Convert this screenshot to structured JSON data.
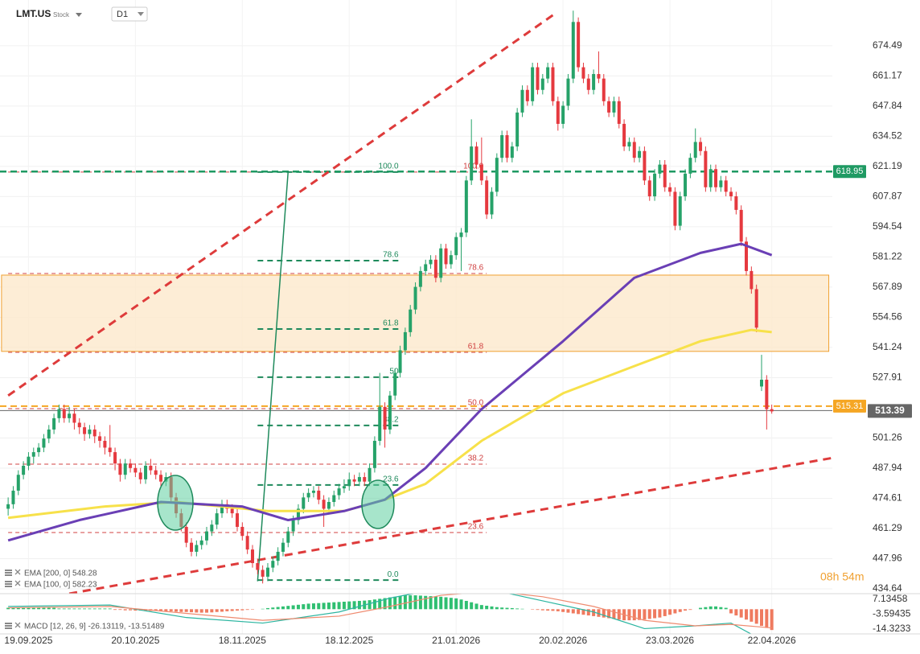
{
  "chart_data": {
    "type": "candlestick",
    "symbol": "LMT.US",
    "instrument_type": "Stock",
    "timeframe": "D1",
    "categories": [
      null,
      null,
      null,
      null,
      "19.09.2025",
      null,
      null,
      null,
      null,
      null,
      null,
      null,
      null,
      null,
      null,
      null,
      null,
      null,
      null,
      null,
      null,
      null,
      null,
      null,
      null,
      "20.10.2025",
      null,
      null,
      null,
      null,
      null,
      null,
      null,
      null,
      null,
      null,
      null,
      null,
      null,
      null,
      null,
      null,
      null,
      null,
      null,
      null,
      "18.11.2025",
      null,
      null,
      null,
      null,
      null,
      null,
      null,
      null,
      null,
      null,
      null,
      null,
      null,
      null,
      null,
      null,
      null,
      null,
      null,
      null,
      "18.12.2025",
      null,
      null,
      null,
      null,
      null,
      null,
      null,
      null,
      null,
      null,
      null,
      null,
      null,
      null,
      null,
      null,
      null,
      null,
      null,
      null,
      "21.01.2026",
      null,
      null,
      null,
      null,
      null,
      null,
      null,
      null,
      null,
      null,
      null,
      null,
      null,
      null,
      null,
      null,
      null,
      null,
      null,
      null,
      "20.02.2026",
      null,
      null,
      null,
      null,
      null,
      null,
      null,
      null,
      null,
      null,
      null,
      null,
      null,
      null,
      null,
      null,
      null,
      null,
      null,
      null,
      "23.03.2026",
      null,
      null,
      null,
      null,
      null,
      null,
      null,
      null,
      null,
      null,
      null,
      null,
      null,
      null,
      null,
      null,
      null,
      null,
      null,
      "22.04.2026"
    ],
    "candles": [
      [
        470,
        475,
        467,
        472
      ],
      [
        472,
        480,
        470,
        478
      ],
      [
        478,
        487,
        476,
        485
      ],
      [
        485,
        491,
        483,
        489
      ],
      [
        489,
        495,
        487,
        493
      ],
      [
        493,
        497,
        490,
        495
      ],
      [
        495,
        499,
        493,
        497
      ],
      [
        497,
        503,
        495,
        501
      ],
      [
        501,
        507,
        499,
        505
      ],
      [
        505,
        512,
        503,
        510
      ],
      [
        510,
        516,
        508,
        514
      ],
      [
        514,
        516,
        508,
        510
      ],
      [
        510,
        515,
        508,
        512
      ],
      [
        512,
        514,
        505,
        508
      ],
      [
        508,
        510,
        503,
        506
      ],
      [
        506,
        508,
        500,
        503
      ],
      [
        503,
        507,
        501,
        505
      ],
      [
        505,
        507,
        499,
        502
      ],
      [
        502,
        504,
        497,
        500
      ],
      [
        500,
        502,
        494,
        497
      ],
      [
        497,
        507,
        493,
        495
      ],
      [
        495,
        497,
        487,
        490
      ],
      [
        490,
        492,
        482,
        485
      ],
      [
        485,
        492,
        483,
        490
      ],
      [
        490,
        492,
        486,
        488
      ],
      [
        488,
        490,
        484,
        486
      ],
      [
        486,
        488,
        481,
        483
      ],
      [
        483,
        491,
        481,
        489
      ],
      [
        489,
        492,
        485,
        487
      ],
      [
        487,
        489,
        483,
        485
      ],
      [
        485,
        487,
        480,
        482
      ],
      [
        482,
        486,
        480,
        484
      ],
      [
        484,
        486,
        473,
        475
      ],
      [
        475,
        477,
        466,
        468
      ],
      [
        468,
        470,
        460,
        462
      ],
      [
        462,
        464,
        453,
        455
      ],
      [
        455,
        457,
        449,
        451
      ],
      [
        451,
        456,
        449,
        454
      ],
      [
        454,
        458,
        452,
        456
      ],
      [
        456,
        462,
        454,
        460
      ],
      [
        460,
        465,
        458,
        463
      ],
      [
        463,
        470,
        461,
        468
      ],
      [
        468,
        474,
        466,
        472
      ],
      [
        472,
        474,
        468,
        470
      ],
      [
        470,
        472,
        466,
        468
      ],
      [
        468,
        470,
        460,
        462
      ],
      [
        462,
        464,
        456,
        458
      ],
      [
        458,
        460,
        450,
        452
      ],
      [
        452,
        454,
        444,
        446
      ],
      [
        446,
        448,
        441,
        443
      ],
      [
        443,
        445,
        437,
        440
      ],
      [
        440,
        446,
        438,
        444
      ],
      [
        444,
        449,
        442,
        447
      ],
      [
        447,
        453,
        445,
        451
      ],
      [
        451,
        457,
        449,
        455
      ],
      [
        455,
        462,
        453,
        460
      ],
      [
        460,
        467,
        458,
        465
      ],
      [
        465,
        472,
        463,
        470
      ],
      [
        470,
        477,
        468,
        475
      ],
      [
        475,
        479,
        473,
        477
      ],
      [
        477,
        480,
        475,
        478
      ],
      [
        478,
        480,
        472,
        474
      ],
      [
        474,
        476,
        462,
        470
      ],
      [
        470,
        475,
        468,
        473
      ],
      [
        473,
        478,
        471,
        476
      ],
      [
        476,
        481,
        474,
        479
      ],
      [
        479,
        483,
        477,
        480
      ],
      [
        480,
        486,
        478,
        483
      ],
      [
        483,
        485,
        480,
        482
      ],
      [
        482,
        486,
        480,
        484
      ],
      [
        484,
        486,
        480,
        482
      ],
      [
        482,
        490,
        480,
        488
      ],
      [
        488,
        502,
        486,
        500
      ],
      [
        500,
        530,
        498,
        515
      ],
      [
        515,
        517,
        497,
        505
      ],
      [
        505,
        522,
        503,
        520
      ],
      [
        520,
        532,
        518,
        530
      ],
      [
        530,
        542,
        528,
        540
      ],
      [
        540,
        550,
        538,
        548
      ],
      [
        548,
        560,
        546,
        558
      ],
      [
        558,
        570,
        556,
        568
      ],
      [
        568,
        577,
        566,
        575
      ],
      [
        575,
        580,
        573,
        578
      ],
      [
        578,
        582,
        576,
        580
      ],
      [
        580,
        582,
        570,
        572
      ],
      [
        572,
        587,
        570,
        585
      ],
      [
        585,
        587,
        576,
        578
      ],
      [
        578,
        584,
        576,
        582
      ],
      [
        582,
        592,
        580,
        590
      ],
      [
        590,
        594,
        575,
        592
      ],
      [
        592,
        617,
        590,
        615
      ],
      [
        615,
        642,
        613,
        630
      ],
      [
        630,
        632,
        620,
        622
      ],
      [
        622,
        634,
        613,
        615
      ],
      [
        615,
        617,
        598,
        600
      ],
      [
        600,
        612,
        598,
        610
      ],
      [
        610,
        627,
        608,
        625
      ],
      [
        625,
        637,
        623,
        635
      ],
      [
        635,
        637,
        623,
        625
      ],
      [
        625,
        632,
        623,
        630
      ],
      [
        630,
        647,
        628,
        645
      ],
      [
        645,
        657,
        643,
        655
      ],
      [
        655,
        657,
        648,
        650
      ],
      [
        650,
        667,
        648,
        665
      ],
      [
        665,
        667,
        653,
        655
      ],
      [
        655,
        662,
        653,
        660
      ],
      [
        660,
        667,
        658,
        665
      ],
      [
        665,
        667,
        648,
        650
      ],
      [
        650,
        652,
        637,
        640
      ],
      [
        640,
        650,
        638,
        648
      ],
      [
        648,
        662,
        646,
        660
      ],
      [
        660,
        690,
        658,
        685
      ],
      [
        685,
        687,
        663,
        665
      ],
      [
        665,
        667,
        658,
        660
      ],
      [
        660,
        662,
        653,
        655
      ],
      [
        655,
        664,
        653,
        662
      ],
      [
        662,
        672,
        658,
        660
      ],
      [
        660,
        662,
        648,
        650
      ],
      [
        650,
        652,
        643,
        645
      ],
      [
        645,
        652,
        643,
        650
      ],
      [
        650,
        652,
        638,
        640
      ],
      [
        640,
        642,
        628,
        630
      ],
      [
        630,
        634,
        628,
        632
      ],
      [
        632,
        634,
        623,
        625
      ],
      [
        625,
        630,
        623,
        628
      ],
      [
        628,
        630,
        613,
        615
      ],
      [
        615,
        617,
        606,
        608
      ],
      [
        608,
        620,
        606,
        618
      ],
      [
        618,
        624,
        616,
        622
      ],
      [
        622,
        624,
        610,
        612
      ],
      [
        612,
        614,
        608,
        610
      ],
      [
        610,
        612,
        593,
        595
      ],
      [
        595,
        610,
        593,
        608
      ],
      [
        608,
        620,
        606,
        618
      ],
      [
        618,
        627,
        616,
        625
      ],
      [
        625,
        638,
        623,
        632
      ],
      [
        632,
        634,
        626,
        628
      ],
      [
        628,
        630,
        610,
        612
      ],
      [
        612,
        622,
        610,
        620
      ],
      [
        620,
        622,
        610,
        612
      ],
      [
        612,
        617,
        610,
        615
      ],
      [
        615,
        617,
        608,
        610
      ],
      [
        610,
        612,
        606,
        608
      ],
      [
        608,
        610,
        600,
        602
      ],
      [
        602,
        604,
        586,
        588
      ],
      [
        588,
        590,
        573,
        575
      ],
      [
        575,
        577,
        565,
        567
      ],
      [
        567,
        569,
        548,
        550
      ],
      [
        524,
        538,
        522,
        527
      ],
      [
        527,
        529,
        505,
        514
      ],
      [
        514,
        516,
        512,
        513
      ]
    ],
    "up_color": "#26a269",
    "down_color": "#e5393f",
    "xlim": [
      -1.6,
      161.9
    ],
    "ylim": [
      432.5,
      694.7
    ],
    "yticks": [
      674.49,
      661.17,
      647.84,
      634.52,
      621.19,
      607.87,
      594.54,
      581.22,
      567.89,
      554.56,
      541.24,
      527.91,
      501.26,
      487.94,
      474.61,
      461.29,
      447.96,
      434.64
    ],
    "grid": true,
    "overlays": [
      {
        "legend": "EMA [200, 0] 548.28",
        "color": "#f7e14a",
        "x": [
          0,
          19,
          33,
          51,
          66,
          74,
          82,
          93,
          109,
          123,
          136,
          146,
          150
        ],
        "values": [
          466,
          471,
          473,
          469,
          469,
          474,
          481,
          500,
          521,
          533,
          544,
          549,
          548
        ]
      },
      {
        "legend": "EMA [100, 0] 582.23",
        "color": "#6a3fb5",
        "x": [
          0,
          14,
          30,
          46,
          55,
          66,
          74,
          82,
          93,
          109,
          123,
          136,
          144,
          150
        ],
        "values": [
          456,
          465,
          473,
          471,
          465,
          469,
          474,
          488,
          514,
          544,
          572,
          583,
          587,
          582
        ]
      }
    ],
    "trend_lines": [
      {
        "color": "#de3b3b",
        "style": "dashed",
        "x": [
          0,
          107
        ],
        "values": [
          520,
          688
        ]
      },
      {
        "color": "#de3b3b",
        "style": "dashed",
        "x": [
          12,
          162
        ],
        "values": [
          432.5,
          492.5
        ]
      },
      {
        "color": "#1f8a5c",
        "style": "solid",
        "x": [
          49,
          55
        ],
        "values": [
          438,
          619
        ]
      }
    ],
    "zone": {
      "range": [
        539.5,
        573.2
      ],
      "x": [
        -1.3,
        161.2
      ],
      "color": "#fde9cc",
      "border": "#f0a030"
    },
    "levels": [
      {
        "value": 618.95,
        "color": "#1f9a63",
        "style": "dashed"
      },
      {
        "value": 515.31,
        "color": "#f5a623",
        "style": "dashed"
      }
    ],
    "last_price": {
      "value": 513.39,
      "color": "#666666"
    },
    "fib_green": {
      "color": "#1f8a5c",
      "x": [
        49,
        77
      ],
      "levels": [
        {
          "label": "100.0",
          "value": 618.7
        },
        {
          "label": "78.6",
          "value": 579.6
        },
        {
          "label": "61.8",
          "value": 549.4
        },
        {
          "label": "50",
          "value": 528.1
        },
        {
          "label": "38.2",
          "value": 506.8
        },
        {
          "label": "23.6",
          "value": 480.5
        },
        {
          "label": "0.0",
          "value": 438.5
        }
      ]
    },
    "fib_red": {
      "color": "#d04040",
      "x": [
        0,
        94
      ],
      "levels": [
        {
          "label": "100.0",
          "value": 618.7
        },
        {
          "label": "78.6",
          "value": 573.9
        },
        {
          "label": "61.8",
          "value": 539.1
        },
        {
          "label": "50.0",
          "value": 514.2
        },
        {
          "label": "38.2",
          "value": 489.7
        },
        {
          "label": "23.6",
          "value": 459.5
        }
      ]
    },
    "timer": "08h 54m",
    "macd": {
      "legend": "MACD [12, 26, 9] -26.13119, -13.51489",
      "y2lim": [
        -17.8,
        11.2
      ],
      "y2ticks": [
        7.13458,
        -3.59435,
        -14.3233
      ],
      "up_color": "#2fbf71",
      "down_color": "#ef7a5f",
      "histogram": [
        1,
        1,
        1,
        1,
        1,
        1,
        1,
        1,
        1,
        1,
        0.5,
        0.5,
        0.5,
        0.5,
        0.5,
        0.5,
        0.5,
        0.5,
        0.5,
        0.5,
        0.5,
        -0.5,
        -0.5,
        -0.8,
        -0.8,
        -1,
        -1,
        -1,
        -1.2,
        -1.2,
        -1.2,
        -1.5,
        -1.5,
        -1.8,
        -2,
        -2,
        -2.2,
        -2.4,
        -2.5,
        -2.5,
        -2.3,
        -2,
        -1.8,
        -1.5,
        -1.3,
        -1,
        -0.8,
        -0.5,
        -0.3,
        0,
        0.3,
        0.8,
        1.2,
        1.6,
        2,
        2.4,
        2.8,
        3.2,
        3.6,
        4,
        4.2,
        4.4,
        4.6,
        4.8,
        5,
        5.2,
        5.4,
        5.6,
        5.8,
        6,
        6.2,
        6.5,
        7,
        7.5,
        8,
        8.5,
        9,
        9.5,
        10,
        10,
        10,
        9.8,
        9.6,
        9.4,
        9.2,
        9,
        8.6,
        8.2,
        7.8,
        7,
        6,
        5,
        4,
        3,
        2.5,
        2,
        1.5,
        1.2,
        1,
        0.8,
        0.5,
        0.3,
        0,
        -0.3,
        -0.5,
        -0.8,
        -1,
        -1.2,
        -1.5,
        -2,
        -2.5,
        -3,
        -3.5,
        -4,
        -4.5,
        -5,
        -5.5,
        -6,
        -6.5,
        -7,
        -7.5,
        -8,
        -8,
        -8,
        -7.8,
        -7.5,
        -7,
        -6.5,
        -6,
        -5,
        -4,
        -3,
        -2,
        -1,
        -0.5,
        0,
        1,
        1.5,
        2,
        2,
        1.5,
        1,
        -3,
        -4.5,
        -6,
        -7.5,
        -9,
        -10.5,
        -12,
        -13.5,
        -15
      ],
      "lines": [
        {
          "color": "#2bb5a0",
          "x": [
            0,
            20,
            35,
            50,
            65,
            75,
            85,
            95,
            105,
            115,
            125,
            135,
            142,
            150
          ],
          "values": [
            2,
            3,
            -6,
            -10,
            -2,
            8,
            15,
            14,
            6,
            -2,
            -14,
            -12,
            -10,
            -26
          ]
        },
        {
          "color": "#ef8a6f",
          "x": [
            0,
            20,
            35,
            50,
            65,
            75,
            85,
            95,
            105,
            115,
            125,
            135,
            142,
            150
          ],
          "values": [
            1,
            2,
            -3,
            -8,
            -5,
            2,
            10,
            13,
            9,
            2,
            -8,
            -12,
            -11,
            -13.5
          ]
        }
      ]
    }
  }
}
